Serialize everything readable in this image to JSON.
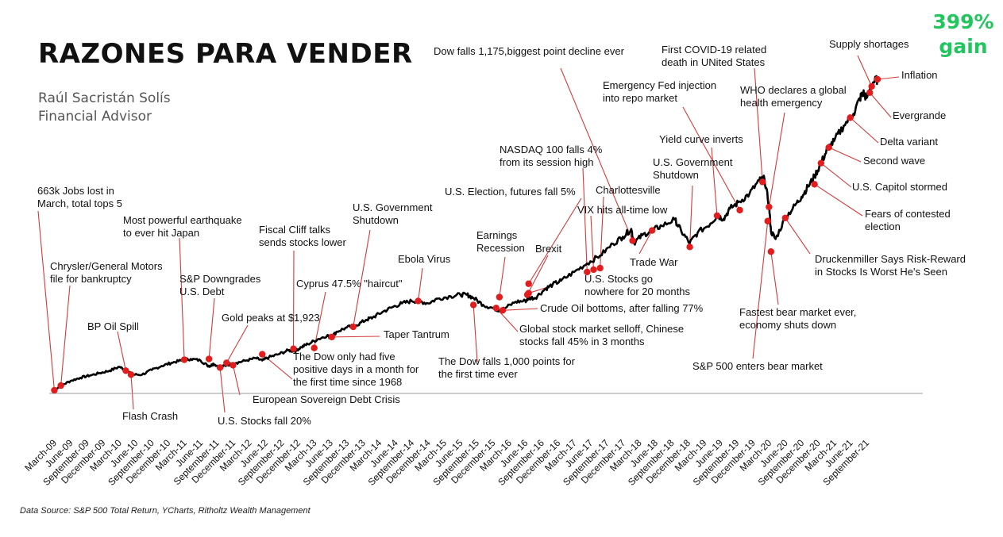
{
  "header": {
    "title": "RAZONES PARA VENDER",
    "author_name": "Raúl Sacristán Solís",
    "author_role": "Financial Advisor",
    "gain_value": "399%",
    "gain_word": "gain"
  },
  "footer": {
    "source": "Data Source: S&P 500 Total Return, YCharts, Ritholtz Wealth Management"
  },
  "colors": {
    "line": "#000000",
    "marker": "#e11d1d",
    "leader": "#d33a3a",
    "baseline": "#999999",
    "gain": "#22c55e"
  },
  "chart_data": {
    "type": "line",
    "title": "RAZONES PARA VENDER",
    "xlabel": "",
    "ylabel": "",
    "ylim": [
      0,
      410
    ],
    "grid": false,
    "legend": "none",
    "x_tick_labels": [
      "March-09",
      "June-09",
      "September-09",
      "December-09",
      "March-10",
      "June-10",
      "September-10",
      "December-10",
      "March-11",
      "June-11",
      "September-11",
      "December-11",
      "March-12",
      "June-12",
      "September-12",
      "December-12",
      "March-13",
      "June-13",
      "September-13",
      "December-13",
      "March-14",
      "June-14",
      "September-14",
      "December-14",
      "March-15",
      "June-15",
      "September-15",
      "December-15",
      "March-16",
      "June-16",
      "September-16",
      "December-16",
      "March-17",
      "June-17",
      "September-17",
      "December-17",
      "March-18",
      "June-18",
      "September-18",
      "December-18",
      "March-19",
      "June-19",
      "September-19",
      "December-19",
      "March-20",
      "June-20",
      "September-20",
      "December-20",
      "March-21",
      "June-21",
      "September-21"
    ],
    "series": [
      {
        "x": [
          2009.17,
          2009.3,
          2009.45,
          2009.6,
          2009.75,
          2009.9,
          2010.05,
          2010.2,
          2010.31,
          2010.4,
          2010.55,
          2010.7,
          2010.85,
          2011.0,
          2011.15,
          2011.3,
          2011.45,
          2011.55,
          2011.6,
          2011.65,
          2011.75,
          2011.85,
          2012.0,
          2012.15,
          2012.3,
          2012.4,
          2012.5,
          2012.65,
          2012.8,
          2012.9,
          2013.0,
          2013.1,
          2013.25,
          2013.4,
          2013.45,
          2013.55,
          2013.7,
          2013.85,
          2014.0,
          2014.1,
          2014.25,
          2014.4,
          2014.55,
          2014.7,
          2014.8,
          2014.95,
          2015.1,
          2015.3,
          2015.45,
          2015.55,
          2015.65,
          2015.8,
          2015.95,
          2016.05,
          2016.12,
          2016.3,
          2016.45,
          2016.5,
          2016.6,
          2016.75,
          2016.87,
          2017.0,
          2017.2,
          2017.4,
          2017.6,
          2017.8,
          2017.95,
          2018.08,
          2018.12,
          2018.25,
          2018.4,
          2018.55,
          2018.75,
          2018.85,
          2018.98,
          2019.1,
          2019.3,
          2019.4,
          2019.5,
          2019.6,
          2019.75,
          2019.9,
          2020.05,
          2020.13,
          2020.2,
          2020.23,
          2020.3,
          2020.45,
          2020.6,
          2020.7,
          2020.8,
          2020.9,
          2021.0,
          2021.1,
          2021.2,
          2021.35,
          2021.5,
          2021.6,
          2021.65,
          2021.7,
          2021.8,
          2021.87
        ],
        "y": [
          0,
          8,
          14,
          18,
          21,
          24,
          27,
          32,
          27,
          22,
          22,
          28,
          33,
          37,
          40,
          42,
          40,
          34,
          33,
          36,
          31,
          34,
          37,
          40,
          43,
          40,
          44,
          48,
          53,
          52,
          57,
          61,
          67,
          72,
          69,
          77,
          82,
          85,
          92,
          95,
          102,
          108,
          113,
          116,
          116,
          113,
          119,
          122,
          124,
          124,
          120,
          111,
          107,
          104,
          106,
          115,
          116,
          120,
          120,
          131,
          137,
          142,
          153,
          164,
          174,
          189,
          198,
          208,
          190,
          200,
          206,
          212,
          220,
          205,
          190,
          203,
          215,
          225,
          221,
          234,
          243,
          253,
          270,
          272,
          238,
          205,
          195,
          222,
          238,
          249,
          262,
          275,
          292,
          310,
          320,
          340,
          355,
          375,
          382,
          375,
          395,
          399
        ]
      }
    ],
    "annotations": [
      {
        "text": [
          "663k Jobs lost in",
          "March, total tops 5"
        ],
        "point_x": 2009.2,
        "point_y": 2
      },
      {
        "text": [
          "Chrysler/General Motors",
          "file for bankruptcy"
        ],
        "point_x": 2009.3,
        "point_y": 8
      },
      {
        "text": [
          "BP Oil Spill"
        ],
        "point_x": 2010.3,
        "point_y": 27
      },
      {
        "text": [
          "Flash Crash"
        ],
        "point_x": 2010.38,
        "point_y": 22
      },
      {
        "text": [
          "Most powerful earthquake",
          "to ever hit Japan"
        ],
        "point_x": 2011.2,
        "point_y": 41
      },
      {
        "text": [
          "S&P Downgrades",
          "U.S. Debt"
        ],
        "point_x": 2011.58,
        "point_y": 42
      },
      {
        "text": [
          "U.S. Stocks fall 20%"
        ],
        "point_x": 2011.75,
        "point_y": 31
      },
      {
        "text": [
          "Gold peaks at $1,923"
        ],
        "point_x": 2011.85,
        "point_y": 37
      },
      {
        "text": [
          "European Sovereign Debt Crisis"
        ],
        "point_x": 2011.95,
        "point_y": 34
      },
      {
        "text": [
          "The Dow only had five",
          "positive days in a month for",
          "the first time since 1968"
        ],
        "point_x": 2012.4,
        "point_y": 48
      },
      {
        "text": [
          "Fiscal Cliff talks",
          "sends stocks lower"
        ],
        "point_x": 2012.88,
        "point_y": 55
      },
      {
        "text": [
          "Cyprus 47.5% \"haircut\""
        ],
        "point_x": 2013.2,
        "point_y": 56
      },
      {
        "text": [
          "Taper Tantrum"
        ],
        "point_x": 2013.47,
        "point_y": 70
      },
      {
        "text": [
          "U.S. Government",
          "Shutdown"
        ],
        "point_x": 2013.8,
        "point_y": 83
      },
      {
        "text": [
          "Ebola Virus"
        ],
        "point_x": 2014.8,
        "point_y": 116
      },
      {
        "text": [
          "The Dow falls 1,000 points for",
          "the first time ever"
        ],
        "point_x": 2015.65,
        "point_y": 111
      },
      {
        "text": [
          "Earnings",
          "Recession"
        ],
        "point_x": 2016.05,
        "point_y": 121
      },
      {
        "text": [
          "Global stock market selloff, Chinese",
          "stocks fall 45% in 3 months"
        ],
        "point_x": 2016.0,
        "point_y": 107
      },
      {
        "text": [
          "Crude Oil bottoms, after falling 77%"
        ],
        "point_x": 2016.1,
        "point_y": 104
      },
      {
        "text": [
          "U.S. Election, futures fall 5%"
        ],
        "point_x": 2016.5,
        "point_y": 138
      },
      {
        "text": [
          "Brexit"
        ],
        "point_x": 2016.48,
        "point_y": 124
      },
      {
        "text": [
          "U.S. Stocks go",
          "nowhere for 20 months"
        ],
        "point_x": 2016.5,
        "point_y": 126
      },
      {
        "text": [
          "NASDAQ 100 falls 4%",
          "from its  session high"
        ],
        "point_x": 2017.4,
        "point_y": 153
      },
      {
        "text": [
          "VIX hits all-time low"
        ],
        "point_x": 2017.5,
        "point_y": 156
      },
      {
        "text": [
          "Charlottesville"
        ],
        "point_x": 2017.6,
        "point_y": 158
      },
      {
        "text": [
          "Dow falls 1,175,biggest point decline ever"
        ],
        "point_x": 2018.1,
        "point_y": 193
      },
      {
        "text": [
          "Trade War"
        ],
        "point_x": 2018.4,
        "point_y": 206
      },
      {
        "text": [
          "U.S. Government",
          "Shutdown"
        ],
        "point_x": 2018.98,
        "point_y": 185
      },
      {
        "text": [
          "Yield curve inverts"
        ],
        "point_x": 2019.4,
        "point_y": 225
      },
      {
        "text": [
          "Emergency Fed injection",
          "into repo market"
        ],
        "point_x": 2019.75,
        "point_y": 232
      },
      {
        "text": [
          "First COVID-19 related",
          "death in UNited States"
        ],
        "point_x": 2020.1,
        "point_y": 268
      },
      {
        "text": [
          "WHO declares a global",
          "health emergency"
        ],
        "point_x": 2020.2,
        "point_y": 236
      },
      {
        "text": [
          "S&P 500 enters bear market"
        ],
        "point_x": 2020.18,
        "point_y": 218
      },
      {
        "text": [
          "Fastest bear market ever,",
          "economy shuts down"
        ],
        "point_x": 2020.23,
        "point_y": 179
      },
      {
        "text": [
          "Druckenmiller Says Risk-Reward",
          "in Stocks Is Worst He's Seen"
        ],
        "point_x": 2020.45,
        "point_y": 222
      },
      {
        "text": [
          "Fears of contested",
          "election"
        ],
        "point_x": 2020.9,
        "point_y": 265
      },
      {
        "text": [
          "U.S. Capitol stormed"
        ],
        "point_x": 2021.0,
        "point_y": 292
      },
      {
        "text": [
          "Second wave"
        ],
        "point_x": 2021.12,
        "point_y": 312
      },
      {
        "text": [
          "Delta variant"
        ],
        "point_x": 2021.45,
        "point_y": 350
      },
      {
        "text": [
          "Evergrande"
        ],
        "point_x": 2021.75,
        "point_y": 382
      },
      {
        "text": [
          "Inflation"
        ],
        "point_x": 2021.87,
        "point_y": 399
      },
      {
        "text": [
          "Supply shortages"
        ],
        "point_x": 2021.78,
        "point_y": 390
      }
    ]
  }
}
